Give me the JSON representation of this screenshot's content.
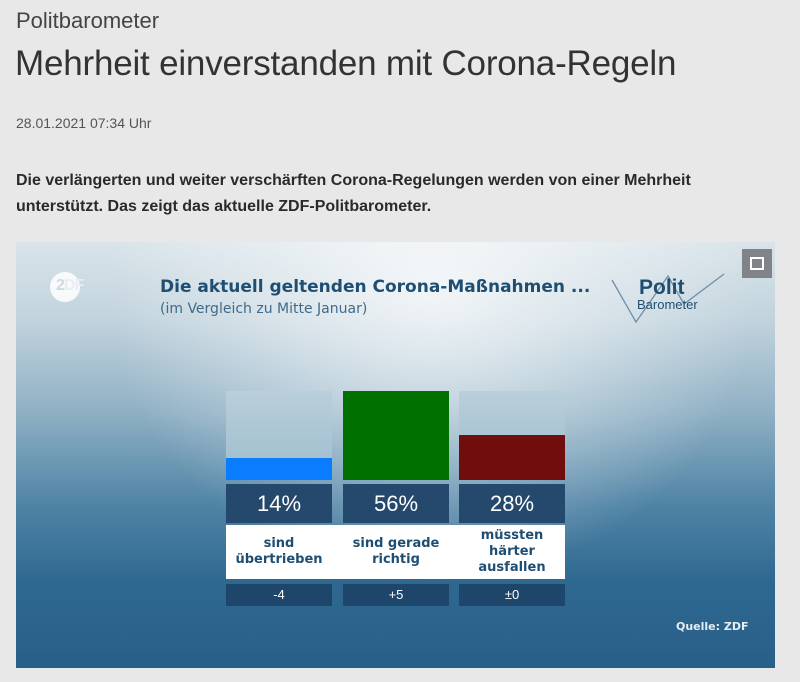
{
  "article": {
    "kicker": "Politbarometer",
    "title": "Mehrheit einverstanden mit Corona-Regeln",
    "date": "28.01.2021 07:34 Uhr",
    "lead": "Die verlängerten und weiter verschärften Corona-Regelungen werden von einer Mehrheit unterstützt. Das zeigt das aktuelle ZDF-Politbarometer."
  },
  "graphic": {
    "broadcaster_logo": {
      "part1": "2",
      "part2": "DF"
    },
    "brand_logo": {
      "line1": "Polit",
      "line2": "Barometer"
    },
    "expand_icon": "fullscreen-icon",
    "source": "Quelle: ZDF"
  },
  "chart_data": {
    "type": "bar",
    "title": "Die aktuell geltenden Corona-Maßnahmen ...",
    "subtitle": "(im Vergleich zu Mitte Januar)",
    "categories": [
      "sind übertrieben",
      "sind gerade richtig",
      "müssten härter ausfallen"
    ],
    "category_lines": [
      [
        "sind",
        "übertrieben"
      ],
      [
        "sind gerade",
        "richtig"
      ],
      [
        "müssten",
        "härter",
        "ausfallen"
      ]
    ],
    "values": [
      14,
      56,
      28
    ],
    "value_labels": [
      "14%",
      "56%",
      "28%"
    ],
    "changes": [
      "-4",
      "+5",
      "±0"
    ],
    "colors": [
      "#0a7dff",
      "#007000",
      "#720d0d"
    ],
    "unit": "%",
    "ylim": [
      0,
      56
    ],
    "xlabel": "",
    "ylabel": "",
    "grid": false,
    "legend": "none"
  }
}
